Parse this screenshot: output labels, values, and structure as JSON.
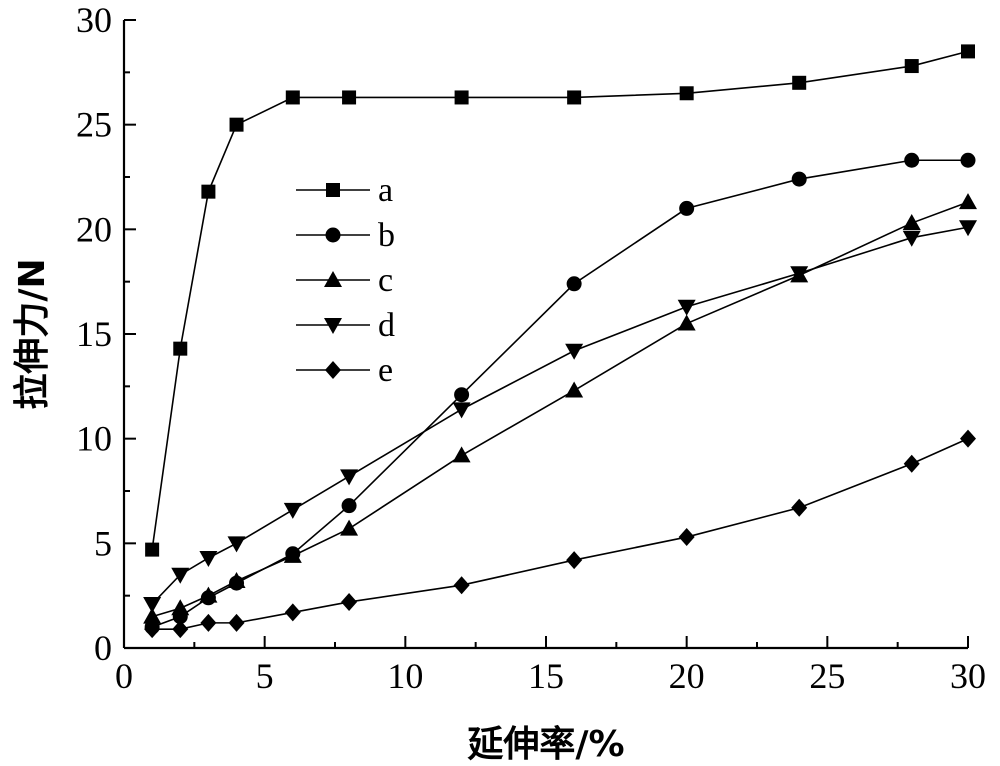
{
  "chart_data": {
    "type": "line",
    "xlabel": "延伸率/%",
    "ylabel": "拉伸力/N",
    "xlim": [
      0,
      30
    ],
    "ylim": [
      0,
      30
    ],
    "xticks": [
      0,
      5,
      10,
      15,
      20,
      25,
      30
    ],
    "yticks": [
      0,
      5,
      10,
      15,
      20,
      25,
      30
    ],
    "grid": false,
    "legend_position": "upper-left inside plot",
    "series": [
      {
        "name": "a",
        "marker": "square",
        "x": [
          1,
          2,
          3,
          4,
          6,
          8,
          12,
          16,
          20,
          24,
          28,
          30
        ],
        "y": [
          4.7,
          14.3,
          21.8,
          25.0,
          26.3,
          26.3,
          26.3,
          26.3,
          26.5,
          27.0,
          27.8,
          28.5
        ]
      },
      {
        "name": "b",
        "marker": "circle",
        "x": [
          1,
          2,
          3,
          4,
          6,
          8,
          12,
          16,
          20,
          24,
          28,
          30
        ],
        "y": [
          1.0,
          1.5,
          2.4,
          3.1,
          4.5,
          6.8,
          12.1,
          17.4,
          21.0,
          22.4,
          23.3,
          23.3
        ]
      },
      {
        "name": "c",
        "marker": "triangle-up",
        "x": [
          1,
          2,
          3,
          4,
          6,
          8,
          12,
          16,
          20,
          24,
          28,
          30
        ],
        "y": [
          1.5,
          1.9,
          2.5,
          3.2,
          4.4,
          5.7,
          9.2,
          12.3,
          15.5,
          17.8,
          20.3,
          21.3
        ]
      },
      {
        "name": "d",
        "marker": "triangle-down",
        "x": [
          1,
          2,
          3,
          4,
          6,
          8,
          12,
          16,
          20,
          24,
          28,
          30
        ],
        "y": [
          2.1,
          3.5,
          4.3,
          5.0,
          6.6,
          8.2,
          11.4,
          14.2,
          16.3,
          17.9,
          19.6,
          20.1
        ]
      },
      {
        "name": "e",
        "marker": "diamond",
        "x": [
          1,
          2,
          3,
          4,
          6,
          8,
          12,
          16,
          20,
          24,
          28,
          30
        ],
        "y": [
          0.9,
          0.9,
          1.2,
          1.2,
          1.7,
          2.2,
          3.0,
          4.2,
          5.3,
          6.7,
          8.8,
          10.0
        ]
      }
    ]
  }
}
